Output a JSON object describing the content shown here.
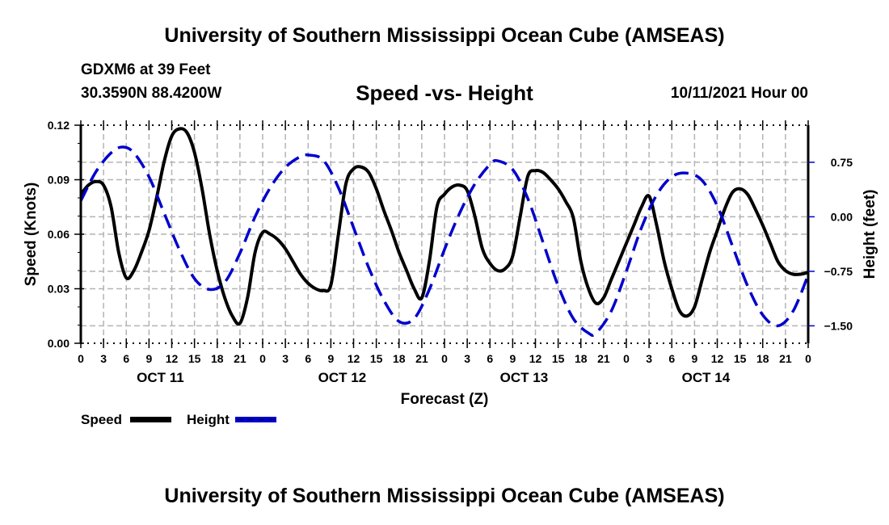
{
  "header": {
    "title": "University of Southern Mississippi Ocean Cube (AMSEAS)",
    "station": "GDXM6 at 39 Feet",
    "coords": "30.3590N  88.4200W",
    "subtitle": "Speed -vs- Height",
    "datetime": "10/11/2021 Hour 00"
  },
  "footer": {
    "title": "University of Southern Mississippi Ocean Cube (AMSEAS)"
  },
  "colors": {
    "speed": "#000000",
    "height": "#0000cc",
    "grid": "#b4b4b4"
  },
  "chart_data": {
    "type": "line",
    "title": "Speed -vs- Height",
    "xlabel": "Forecast (Z)",
    "ylabel": "Speed (Knots)",
    "y2label": "Height (feet)",
    "xlim": [
      0,
      96
    ],
    "ylim": [
      0,
      0.12
    ],
    "y2lim": [
      -1.74,
      1.26
    ],
    "x_ticks": [
      0,
      3,
      6,
      9,
      12,
      15,
      18,
      21,
      24,
      27,
      30,
      33,
      36,
      39,
      42,
      45,
      48,
      51,
      54,
      57,
      60,
      63,
      66,
      69,
      72,
      75,
      78,
      81,
      84,
      87,
      90,
      93,
      96
    ],
    "x_tick_labels": [
      "0",
      "3",
      "6",
      "9",
      "12",
      "15",
      "18",
      "21",
      "0",
      "3",
      "6",
      "9",
      "12",
      "15",
      "18",
      "21",
      "0",
      "3",
      "6",
      "9",
      "12",
      "15",
      "18",
      "21",
      "0",
      "3",
      "6",
      "9",
      "12",
      "15",
      "18",
      "21",
      "0"
    ],
    "day_labels": [
      {
        "label": "OCT 11",
        "center_hour": 10.5
      },
      {
        "label": "OCT 12",
        "center_hour": 34.5
      },
      {
        "label": "OCT 13",
        "center_hour": 58.5
      },
      {
        "label": "OCT 14",
        "center_hour": 82.5
      }
    ],
    "y_ticks": [
      0.0,
      0.03,
      0.06,
      0.09,
      0.12
    ],
    "y_tick_labels": [
      "0.00",
      "0.03",
      "0.06",
      "0.09",
      "0.12"
    ],
    "y2_ticks": [
      0.75,
      0.0,
      -0.75,
      -1.5
    ],
    "y2_tick_labels": [
      "0.75",
      "0.00",
      "−0.75",
      "−1.50"
    ],
    "grid": true,
    "legend": {
      "placement": "bottom-left",
      "entries": [
        "Speed",
        "Height"
      ]
    },
    "series": [
      {
        "name": "Speed",
        "axis": "left",
        "style": "solid",
        "x": [
          0,
          1,
          2,
          3,
          4,
          5,
          6,
          7,
          8,
          9,
          10,
          11,
          12,
          13,
          14,
          15,
          16,
          17,
          18,
          19,
          20,
          21,
          22,
          23,
          24,
          25,
          26,
          27,
          28,
          29,
          30,
          31,
          32,
          33,
          34,
          35,
          36,
          37,
          38,
          39,
          40,
          41,
          42,
          43,
          44,
          45,
          46,
          47,
          48,
          49,
          50,
          51,
          52,
          53,
          54,
          55,
          56,
          57,
          58,
          59,
          60,
          61,
          62,
          63,
          64,
          65,
          66,
          67,
          68,
          69,
          70,
          71,
          72,
          73,
          74,
          75,
          76,
          77,
          78,
          79,
          80,
          81,
          82,
          83,
          84,
          85,
          86,
          87,
          88,
          89,
          90,
          91,
          92,
          93,
          94,
          95,
          96
        ],
        "values": [
          0.082,
          0.087,
          0.089,
          0.087,
          0.075,
          0.05,
          0.036,
          0.04,
          0.05,
          0.062,
          0.08,
          0.1,
          0.114,
          0.118,
          0.116,
          0.105,
          0.085,
          0.06,
          0.04,
          0.025,
          0.015,
          0.011,
          0.025,
          0.05,
          0.061,
          0.06,
          0.057,
          0.052,
          0.045,
          0.038,
          0.033,
          0.03,
          0.029,
          0.032,
          0.06,
          0.088,
          0.096,
          0.097,
          0.094,
          0.085,
          0.073,
          0.062,
          0.05,
          0.04,
          0.03,
          0.025,
          0.045,
          0.075,
          0.082,
          0.086,
          0.087,
          0.084,
          0.07,
          0.052,
          0.044,
          0.04,
          0.041,
          0.048,
          0.07,
          0.092,
          0.095,
          0.094,
          0.09,
          0.085,
          0.078,
          0.069,
          0.045,
          0.03,
          0.022,
          0.025,
          0.035,
          0.045,
          0.055,
          0.065,
          0.075,
          0.081,
          0.065,
          0.045,
          0.03,
          0.018,
          0.015,
          0.02,
          0.035,
          0.05,
          0.062,
          0.074,
          0.083,
          0.085,
          0.082,
          0.074,
          0.065,
          0.055,
          0.045,
          0.04,
          0.038,
          0.038,
          0.039
        ]
      },
      {
        "name": "Height",
        "axis": "right",
        "style": "dashed",
        "x": [
          0,
          2,
          4,
          5.5,
          7,
          9,
          11,
          13,
          15,
          17,
          19,
          21,
          23,
          25,
          27,
          29,
          30,
          32,
          34,
          36,
          38,
          40,
          42,
          44,
          46,
          48,
          50,
          52,
          54,
          55,
          57,
          59,
          61,
          63,
          65,
          67,
          68,
          70,
          72,
          74,
          76,
          78,
          80,
          82,
          84,
          86,
          88,
          90,
          92,
          94,
          96
        ],
        "values": [
          0.22,
          0.62,
          0.88,
          0.96,
          0.88,
          0.55,
          0.05,
          -0.45,
          -0.85,
          -1.0,
          -0.9,
          -0.5,
          0.0,
          0.4,
          0.68,
          0.83,
          0.85,
          0.78,
          0.4,
          -0.15,
          -0.7,
          -1.15,
          -1.44,
          -1.4,
          -1.0,
          -0.45,
          0.05,
          0.45,
          0.72,
          0.77,
          0.65,
          0.25,
          -0.35,
          -0.95,
          -1.4,
          -1.6,
          -1.6,
          -1.3,
          -0.75,
          -0.15,
          0.3,
          0.55,
          0.6,
          0.5,
          0.15,
          -0.4,
          -0.95,
          -1.35,
          -1.5,
          -1.3,
          -0.8
        ]
      }
    ]
  }
}
